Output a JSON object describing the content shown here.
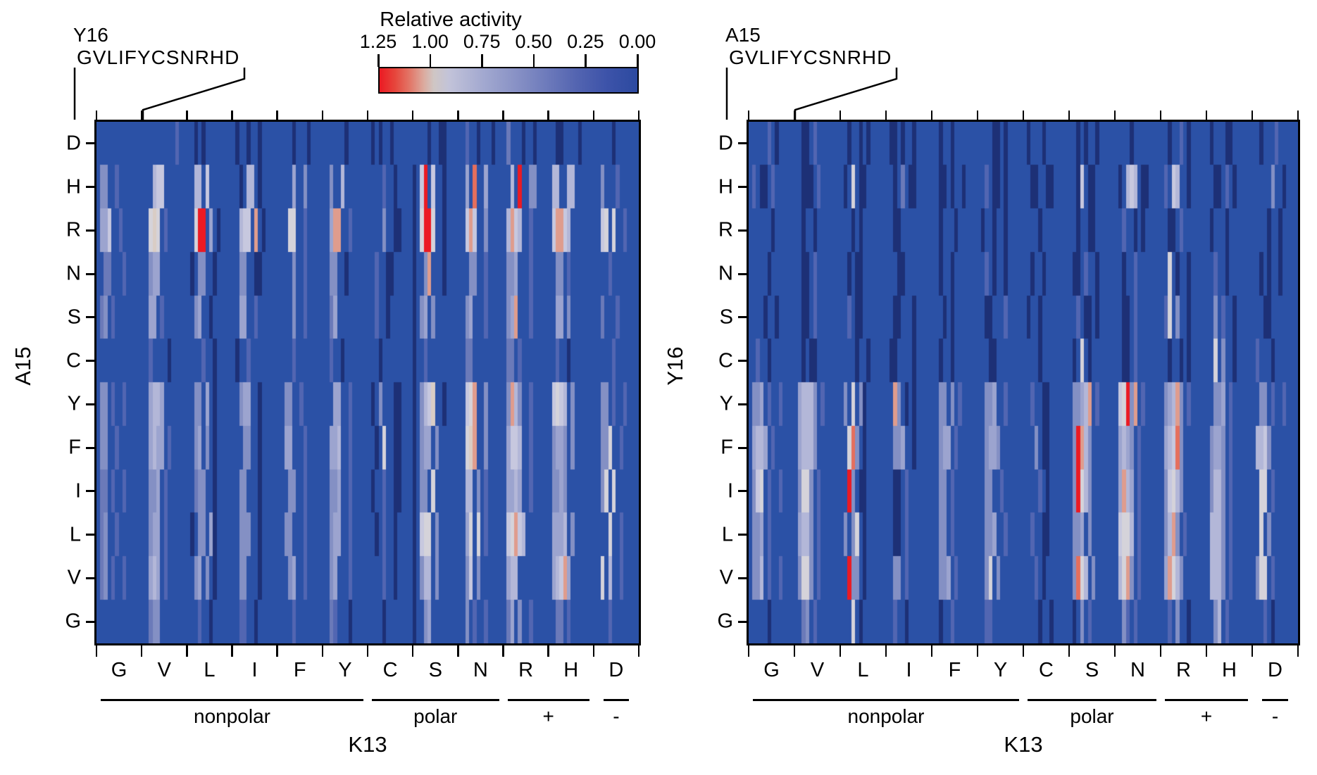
{
  "chart_data": {
    "type": "heatmap",
    "title": "Relative activity",
    "colorbar": {
      "title": "Relative activity",
      "tick_labels": [
        "1.25",
        "1.00",
        "0.75",
        "0.50",
        "0.25",
        "0.00"
      ],
      "orientation": "horizontal-descending",
      "gradient_stops": [
        {
          "pos": 0.0,
          "color": "#EB1A23"
        },
        {
          "pos": 0.06,
          "color": "#E6463C"
        },
        {
          "pos": 0.12,
          "color": "#E2796A"
        },
        {
          "pos": 0.17,
          "color": "#DCA99D"
        },
        {
          "pos": 0.21,
          "color": "#CFC6C4"
        },
        {
          "pos": 0.27,
          "color": "#C2C3D9"
        },
        {
          "pos": 0.4,
          "color": "#A3A9D0"
        },
        {
          "pos": 0.52,
          "color": "#8A93C6"
        },
        {
          "pos": 0.64,
          "color": "#6F7CBC"
        },
        {
          "pos": 0.76,
          "color": "#5465B1"
        },
        {
          "pos": 0.88,
          "color": "#3D53A9"
        },
        {
          "pos": 1.0,
          "color": "#2C4AA0"
        }
      ]
    },
    "value_levels": {
      "0": {
        "value": 0.0,
        "color": "#1D3076"
      },
      "1": {
        "value": 0.05,
        "color": "#24408E"
      },
      ".": {
        "value": 0.1,
        "color": "#2B51A6"
      },
      "2": {
        "value": 0.25,
        "color": "#3A58AB"
      },
      "3": {
        "value": 0.35,
        "color": "#5266B2"
      },
      "4": {
        "value": 0.45,
        "color": "#6B7AB9"
      },
      "5": {
        "value": 0.55,
        "color": "#8490C4"
      },
      "6": {
        "value": 0.65,
        "color": "#9CA4CF"
      },
      "7": {
        "value": 0.75,
        "color": "#B3B7D8"
      },
      "8": {
        "value": 0.85,
        "color": "#C7C8DF"
      },
      "9": {
        "value": 0.95,
        "color": "#D5D3DA"
      },
      "a": {
        "value": 1.0,
        "color": "#D9CDC5"
      },
      "b": {
        "value": 1.05,
        "color": "#DF9C8D"
      },
      "c": {
        "value": 1.1,
        "color": "#E56F5D"
      },
      "d": {
        "value": 1.18,
        "color": "#E73E37"
      },
      "e": {
        "value": 1.25,
        "color": "#EB1A23"
      }
    },
    "panels": [
      {
        "id": "left",
        "y_axis_label": "A15",
        "x_axis_label": "K13",
        "header_residue": "Y16",
        "header_sequence": "GVLIFYCSNRHD",
        "row_labels": [
          "D",
          "H",
          "R",
          "N",
          "S",
          "C",
          "Y",
          "F",
          "I",
          "L",
          "V",
          "G"
        ],
        "col_labels": [
          "G",
          "V",
          "L",
          "I",
          "F",
          "Y",
          "C",
          "S",
          "N",
          "R",
          "H",
          "D"
        ],
        "col_groups": [
          {
            "label": "nonpolar",
            "start": 0,
            "end": 5
          },
          {
            "label": "polar",
            "start": 6,
            "end": 8
          },
          {
            "label": "+",
            "start": 9,
            "end": 10
          },
          {
            "label": "-",
            "start": 11,
            "end": 11
          }
        ],
        "rows": [
          {
            "label": "D",
            "blocks": [
              "............",
              ".........3..",
              "..0.0.......",
              ".0..0..0....",
              "....0...0...",
              "......0.....",
              ".0.0..0.....",
              "....0..00...",
              "..3..0...0..",
              ".4...0..0...",
              "..00....0...",
              ".....0......"
            ]
          },
          {
            "label": "H",
            "blocks": [
              ".55..3......",
              "...788......",
              "..77.8......",
              "..0.77.0....",
              "....6..5....",
              "..5..7......",
              "....3..0....",
              "0.8e.8..0...",
              "..6.c..6....",
              "..7.e..55...",
              ".77..77.....",
              "..5...3....."
            ]
          },
          {
            "label": "R",
            "blocks": [
              ".668..3.....",
              "..9a9.3.....",
              "..9ee.6.0...",
              "..788.b.0...",
              "...99..3....",
              "..6bb..3....",
              "....5..00...",
              "0.9ee9..0...",
              "..8b8..5....",
              ".7b87..3....",
              ".8bb87......",
              "..89.9..3..."
            ]
          },
          {
            "label": "N",
            "blocks": [
              "..44...3....",
              "..566.......",
              ".0.55..0....",
              "..55..00....",
              "....5..3....",
              "..55..0.....",
              "..3..00.....",
              "0..5b...0...",
              "...55..3....",
              ".556...3....",
              "..55.3......",
              "....3......."
            ]
          },
          {
            "label": "S",
            "blocks": [
              ".45.3.......",
              "..66.3......",
              "..56..0.....",
              "..66..3.....",
              "....5..3....",
              "..46........",
              "..3..0......",
              "0.56.5......",
              "..56...3....",
              ".56b...3....",
              "..66.5......",
              "..4...3....."
            ]
          },
          {
            "label": "C",
            "blocks": [
              "............",
              "..3....0....",
              "....3..0....",
              ".0..3.......",
              "....3.......",
              "..3..0......",
              "...0........",
              "0..3........",
              "..44........",
              ".44.3.......",
              "..3..0......",
              ".....3......"
            ]
          },
          {
            "label": "Y",
            "blocks": [
              ".55.3..3....",
              "..6776......",
              "..55.6.0....",
              "..566..0....",
              "..55..3.....",
              "...66..3....",
              ".0.5...00...",
              "0.578a..0...",
              "..89b..5....",
              ".5b75..3....",
              ".8987.5.....",
              "..55.3..3..."
            ]
          },
          {
            "label": "F",
            "blocks": [
              ".55..3......",
              "..6766.3....",
              "..56.5.0....",
              "...55..0....",
              "..66...3....",
              "..667..3....",
              "..0.9..00...",
              "0.566.5.....",
              "..9ab..5....",
              ".6887..3....",
              ".5665.5.....",
              "..559..3...."
            ]
          },
          {
            "label": "I",
            "blocks": [
              ".44.3..3....",
              "..556.3.....",
              "..455..0....",
              "..55...0....",
              "...55..3....",
              "..556..3....",
              ".0..3..00...",
              "0.55.9......",
              "..77.5.3....",
              ".6676..3....",
              ".5565.......",
              "..59.9......"
            ]
          },
          {
            "label": "L",
            "blocks": [
              ".45..3......",
              "..566.3.....",
              ".0.55.60....",
              "..555..0....",
              "..55...3....",
              "..566..3....",
              "..0.3..0....",
              "0.899.5.....",
              "..69.9.3....",
              ".89b87......",
              ".6667.5.....",
              "....9..3...."
            ]
          },
          {
            "label": "V",
            "blocks": [
              ".45.3..3....",
              "..676.3.....",
              "..56.5.0....",
              "..55...0....",
              "...56..3....",
              "..56...3....",
              "....3..0....",
              "0.577.5.....",
              "..58.5......",
              ".677........",
              ".678b6......",
              "..9.7..3...."
            ]
          },
          {
            "label": "G",
            "blocks": [
              "............",
              "..455.......",
              "...3..0.....",
              "..33..0.....",
              "....3.......",
              "..43...0....",
              "....0.......",
              "0..56.......",
              "..5.3..3....",
              ".46.5..3....",
              "..44.3......",
              "....3......."
            ]
          }
        ]
      },
      {
        "id": "right",
        "y_axis_label": "Y16",
        "x_axis_label": "K13",
        "header_residue": "A15",
        "header_sequence": "GVLIFYCSNRHD",
        "row_labels": [
          "D",
          "H",
          "R",
          "N",
          "S",
          "C",
          "Y",
          "F",
          "I",
          "L",
          "V",
          "G"
        ],
        "col_labels": [
          "G",
          "V",
          "L",
          "I",
          "F",
          "Y",
          "C",
          "S",
          "N",
          "R",
          "H",
          "D"
        ],
        "col_groups": [
          {
            "label": "nonpolar",
            "start": 0,
            "end": 5
          },
          {
            "label": "polar",
            "start": 6,
            "end": 8
          },
          {
            "label": "+",
            "start": 9,
            "end": 10
          },
          {
            "label": "-",
            "start": 11,
            "end": 11
          }
        ],
        "rows": [
          {
            "label": "D",
            "blocks": [
              ".....3.0....",
              "..00.3......",
              "..0..0.0....",
              ".00.0..0....",
              "..0..0......",
              "....00.0....",
              ".0...0......",
              "..0.0..0....",
              "....0.......",
              "..0..3.0....",
              ".0...00.....",
              "..0...3....."
            ]
          },
          {
            "label": "H",
            "blocks": [
              ".3.00.3.....",
              "..000.3.....",
              ".0.9.00.....",
              "..0.4.00....",
              "..00.0..0...",
              "..3.00.0....",
              "..00..00....",
              "..08.00.....",
              ".0.787.00...",
              ".3.87..0....",
              "..00.3.0....",
              ".....5..0..."
            ]
          },
          {
            "label": "R",
            "blocks": [
              "......0.....",
              "..0..0......",
              "...0.0......",
              "..00........",
              "..0...0.....",
              ".0..0..0....",
              "....0.......",
              "..0..00.....",
              "..3..0.0....",
              "..00.3......",
              ".0...0......",
              "....0..0...."
            ]
          },
          {
            "label": "N",
            "blocks": [
              ".....0......",
              "..00.3......",
              "..0.00......",
              "...00.......",
              "..0..0......",
              "..3.0..0....",
              "..0..0......",
              ".00.3..0....",
              "..0..3......",
              "..9.0..0....",
              "..3..0......",
              "..0.0..0...."
            ]
          },
          {
            "label": "S",
            "blocks": [
              "....0..0....",
              "..00.3......",
              "..3.00......",
              "..00...0....",
              "...0.0......",
              "..00...3....",
              ".0..0.......",
              "..3.00.0....",
              "..00.3......",
              ".39.5..0....",
              "..5.3..0....",
              "...00......."
            ]
          },
          {
            "label": "C",
            "blocks": [
              "..3..0......",
              "..0.00......",
              "....0..0....",
              ".00....0....",
              "..0..0......",
              "...00.......",
              "....0.......",
              ".0.9.0......",
              "..00.3......",
              "..0..0.0....",
              "..9.5..0....",
              ".3...0......"
            ]
          },
          {
            "label": "Y",
            "blocks": [
              ".556.3..3...",
              ".67775.3....",
              ".5.9.50.....",
              "..b5.0.0....",
              "..55.5.3....",
              "..556..3....",
              "..3..00.....",
              ".5567b.3....",
              ".89e5b.3....",
              ".567b5.3....",
              "..556.3.....",
              "..55.3..3..."
            ]
          },
          {
            "label": "F",
            "blocks": [
              ".6776.3.....",
              ".67775......",
              "..9c5.0.....",
              "..556..0....",
              "..566.3.....",
              "..5665......",
              "...5.00.....",
              ".5eb75......",
              ".6765.3.....",
              ".678c5......",
              ".5665.3.....",
              ".7785......."
            ]
          },
          {
            "label": "I",
            "blocks": [
              ".589.3..3...",
              ".5995.3.....",
              "..e5.00.....",
              "..00.3......",
              "..55.3......",
              "..55..3.....",
              "....3.0.....",
              ".5e975......",
              ".6b76.3.....",
              ".58975......",
              ".5775.3.....",
              "..99.3......"
            ]
          },
          {
            "label": "L",
            "blocks": [
              ".556.3......",
              ".6775.3.....",
              ".5.59.0.....",
              "..00.3......",
              "..55.3......",
              "..556..3....",
              "..3..00.....",
              ".556.5......",
              ".8997.3.....",
              ".57b5.3.....",
              ".7775.3.....",
              "..9.5......."
            ]
          },
          {
            "label": "V",
            "blocks": [
              ".557.3..3...",
              ".5995.3.....",
              "..e55.0.....",
              "..55.3......",
              "..556.3.....",
              "..59.5......",
              "...3.0......",
              ".5c97.5.....",
              ".79b5.3.....",
              ".6b975......",
              ".7775.3.....",
              ".599.3......"
            ]
          },
          {
            "label": "G",
            "blocks": [
              ".....0......",
              "..45.3......",
              "...9.0......",
              "..3..0......",
              "..0..3......",
              "..33........",
              "....0..0....",
              ".0.5.3......",
              "..53.3......",
              "..3.5..0....",
              "..57.3......",
              "...3.0......"
            ]
          }
        ]
      }
    ]
  }
}
